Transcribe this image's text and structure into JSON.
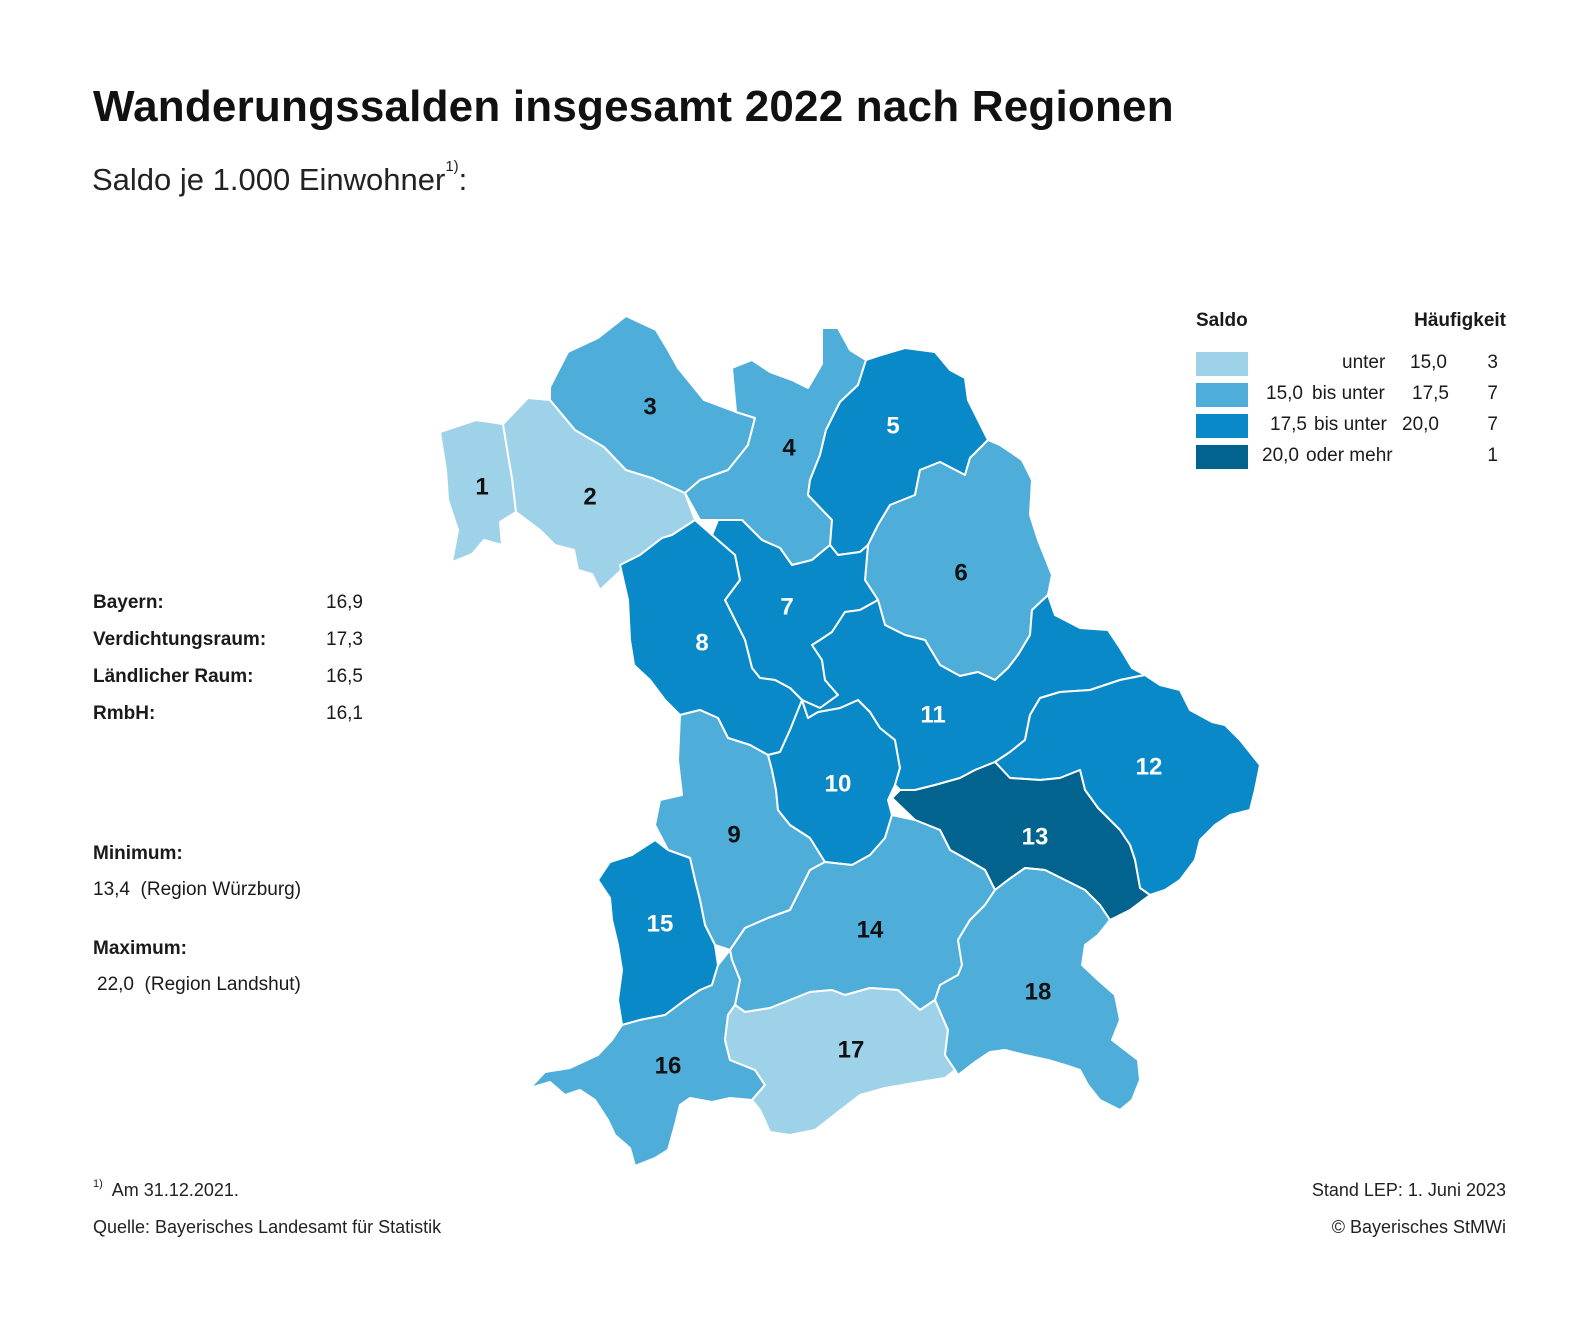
{
  "title": "Wanderungssalden insgesamt 2022 nach Regionen",
  "subtitle": "Saldo je 1.000 Einwohner",
  "subtitle_footnote_mark": "1)",
  "subtitle_colon": ":",
  "stats": [
    {
      "label": "Bayern:",
      "value": "16,9"
    },
    {
      "label": "Verdichtungsraum:",
      "value": "17,3"
    },
    {
      "label": "Ländlicher Raum:",
      "value": "16,5"
    },
    {
      "label": "RmbH:",
      "value": "16,1"
    }
  ],
  "minimum": {
    "label": "Minimum:",
    "value": "13,4",
    "region": "(Region Würzburg)"
  },
  "maximum": {
    "label": "Maximum:",
    "value": "22,0",
    "region": "(Region Landshut)"
  },
  "legend": {
    "header_saldo": "Saldo",
    "header_count": "Häufigkeit",
    "classes": [
      {
        "from": "",
        "connector": "unter",
        "to": "15,0",
        "count": "3",
        "color": "#9ed2e9"
      },
      {
        "from": "15,0",
        "connector": "bis unter",
        "to": "17,5",
        "count": "7",
        "color": "#4fadda"
      },
      {
        "from": "17,5",
        "connector": "bis unter",
        "to": "20,0",
        "count": "7",
        "color": "#0a89c8"
      },
      {
        "from": "20,0",
        "connector": "oder mehr",
        "to": "",
        "count": "1",
        "color": "#02638f"
      }
    ]
  },
  "regions": [
    {
      "id": "1",
      "class": 0
    },
    {
      "id": "2",
      "class": 0
    },
    {
      "id": "3",
      "class": 1
    },
    {
      "id": "4",
      "class": 1
    },
    {
      "id": "5",
      "class": 2
    },
    {
      "id": "6",
      "class": 1
    },
    {
      "id": "7",
      "class": 2
    },
    {
      "id": "8",
      "class": 2
    },
    {
      "id": "9",
      "class": 1
    },
    {
      "id": "10",
      "class": 2
    },
    {
      "id": "11",
      "class": 2
    },
    {
      "id": "12",
      "class": 2
    },
    {
      "id": "13",
      "class": 3
    },
    {
      "id": "14",
      "class": 1
    },
    {
      "id": "15",
      "class": 2
    },
    {
      "id": "16",
      "class": 1
    },
    {
      "id": "17",
      "class": 0
    },
    {
      "id": "18",
      "class": 1
    }
  ],
  "footnote": {
    "mark": "1)",
    "text": "Am 31.12.2021."
  },
  "source": "Quelle: Bayerisches Landesamt für Statistik",
  "stand": "Stand LEP: 1. Juni 2023",
  "copyright": "© Bayerisches StMWi"
}
